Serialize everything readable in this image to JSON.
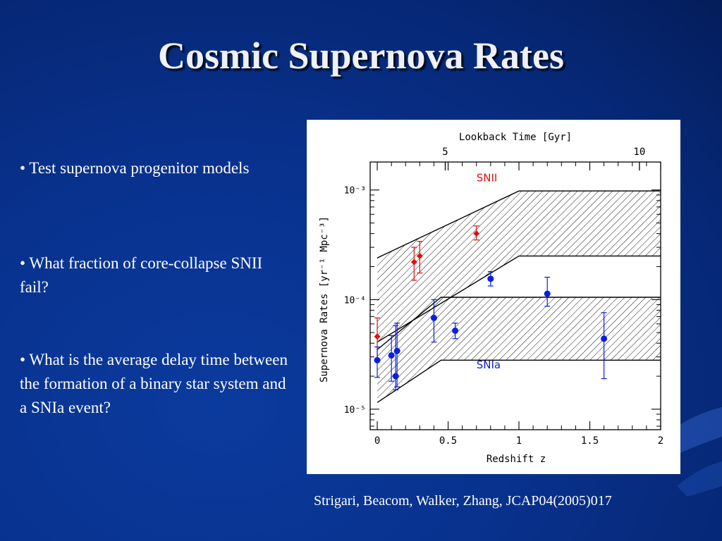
{
  "slide": {
    "title": "Cosmic Supernova Rates",
    "bullets": [
      "• Test supernova progenitor models",
      "• What fraction of  core-collapse SNII fail?",
      "• What is the average delay time between the formation of  a binary star system and a SNIa event?"
    ],
    "citation": "Strigari, Beacom, Walker, Zhang, JCAP04(2005)017"
  },
  "colors": {
    "background": "#08318c",
    "snii": "#e01010",
    "snia": "#0a1ee6",
    "band": "#000000"
  },
  "chart_data": {
    "type": "scatter",
    "xlabel": "Redshift z",
    "ylabel": "Supernova Rates [yr⁻¹ Mpc⁻³]",
    "top_axis_label": "Lookback Time [Gyr]",
    "top_ticks": [
      {
        "label": "5",
        "z": 0.48
      },
      {
        "label": "10",
        "z": 1.85
      }
    ],
    "xlim": [
      -0.05,
      2
    ],
    "xticks": [
      0,
      0.5,
      1,
      1.5,
      2
    ],
    "xtick_labels": [
      "0",
      "0.5",
      "1",
      "1.5",
      "2"
    ],
    "yscale": "log",
    "ylim": [
      6.5e-06,
      0.0018
    ],
    "yticks": [
      1e-05,
      0.0001,
      0.001
    ],
    "ytick_labels": [
      "10⁻⁵",
      "10⁻⁴",
      "10⁻³"
    ],
    "bands": [
      {
        "label": "SNII",
        "lower": [
          [
            0,
            4.1e-05
          ],
          [
            1,
            0.00025
          ],
          [
            2,
            0.00025
          ]
        ],
        "upper": [
          [
            0,
            0.00024
          ],
          [
            1,
            0.00098
          ],
          [
            2,
            0.00098
          ]
        ]
      },
      {
        "label": "SNIa",
        "lower": [
          [
            0,
            1.15e-05
          ],
          [
            0.45,
            2.8e-05
          ],
          [
            2,
            2.8e-05
          ]
        ],
        "upper": [
          [
            0,
            3.5e-05
          ],
          [
            0.45,
            0.000105
          ],
          [
            2,
            0.000105
          ]
        ]
      }
    ],
    "series": [
      {
        "name": "SNII",
        "marker": "diamond",
        "points": [
          {
            "x": 0,
            "y": 4.6e-05,
            "lo": 2.8e-05,
            "hi": 6.8e-05
          },
          {
            "x": 0.26,
            "y": 0.00022,
            "lo": 0.00015,
            "hi": 0.0003
          },
          {
            "x": 0.3,
            "y": 0.00025,
            "lo": 0.000175,
            "hi": 0.00034
          },
          {
            "x": 0.7,
            "y": 0.0004,
            "lo": 0.00035,
            "hi": 0.00047
          }
        ]
      },
      {
        "name": "SNIa",
        "marker": "circle",
        "points": [
          {
            "x": 0,
            "y": 2.8e-05,
            "lo": 1.95e-05,
            "hi": 3.7e-05
          },
          {
            "x": 0.1,
            "y": 3.1e-05,
            "lo": 1.8e-05,
            "hi": 4.7e-05
          },
          {
            "x": 0.13,
            "y": 2e-05,
            "lo": 1.5e-05,
            "hi": 5.8e-05
          },
          {
            "x": 0.14,
            "y": 3.4e-05,
            "lo": 1.6e-05,
            "hi": 6.1e-05
          },
          {
            "x": 0.4,
            "y": 6.8e-05,
            "lo": 4.1e-05,
            "hi": 0.0001
          },
          {
            "x": 0.55,
            "y": 5.2e-05,
            "lo": 4.4e-05,
            "hi": 6.1e-05
          },
          {
            "x": 0.8,
            "y": 0.000155,
            "lo": 0.000133,
            "hi": 0.00018
          },
          {
            "x": 1.2,
            "y": 0.000113,
            "lo": 8.7e-05,
            "hi": 0.00016
          },
          {
            "x": 1.6,
            "y": 4.4e-05,
            "lo": 1.9e-05,
            "hi": 7.6e-05
          }
        ]
      }
    ]
  }
}
